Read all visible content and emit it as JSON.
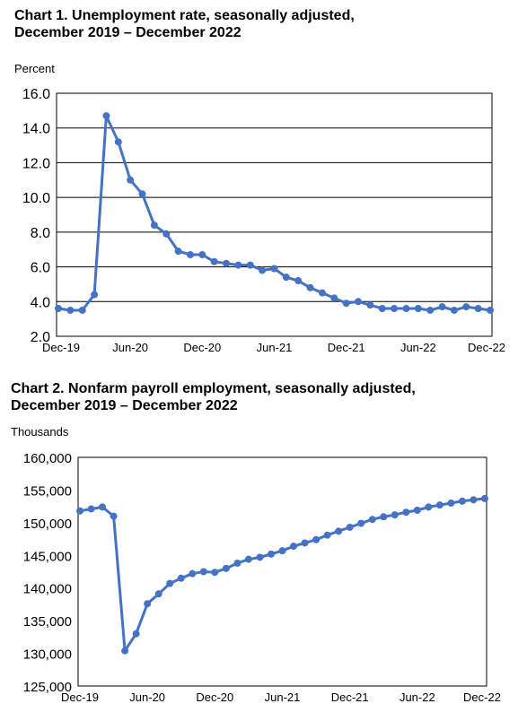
{
  "chart_data": [
    {
      "type": "line",
      "title_line1": "Chart 1. Unemployment rate, seasonally adjusted,",
      "title_line2": "December 2019 – December 2022",
      "ylabel": "Percent",
      "xlabel": "",
      "ylim": [
        2.0,
        16.0
      ],
      "yticks": [
        "2.0",
        "4.0",
        "6.0",
        "8.0",
        "10.0",
        "12.0",
        "14.0",
        "16.0"
      ],
      "ytick_values": [
        2,
        4,
        6,
        8,
        10,
        12,
        14,
        16
      ],
      "xtick_labels": [
        "Dec-19",
        "Jun-20",
        "Dec-20",
        "Jun-21",
        "Dec-21",
        "Jun-22",
        "Dec-22"
      ],
      "xtick_indices": [
        0,
        6,
        12,
        18,
        24,
        30,
        36
      ],
      "grid": true,
      "color": "#4472C4",
      "series": [
        {
          "values": [
            3.6,
            3.5,
            3.5,
            4.4,
            14.7,
            13.2,
            11.0,
            10.2,
            8.4,
            7.9,
            6.9,
            6.7,
            6.7,
            6.3,
            6.2,
            6.1,
            6.1,
            5.8,
            5.9,
            5.4,
            5.2,
            4.8,
            4.5,
            4.2,
            3.9,
            4.0,
            3.8,
            3.6,
            3.6,
            3.6,
            3.6,
            3.5,
            3.7,
            3.5,
            3.7,
            3.6,
            3.5
          ]
        }
      ]
    },
    {
      "type": "line",
      "title_line1": "Chart 2. Nonfarm payroll employment, seasonally adjusted,",
      "title_line2": "December 2019 – December 2022",
      "ylabel": "Thousands",
      "xlabel": "",
      "ylim": [
        125000,
        160000
      ],
      "yticks": [
        "125,000",
        "130,000",
        "135,000",
        "140,000",
        "145,000",
        "150,000",
        "155,000",
        "160,000"
      ],
      "ytick_values": [
        125000,
        130000,
        135000,
        140000,
        145000,
        150000,
        155000,
        160000
      ],
      "xtick_labels": [
        "Dec-19",
        "Jun-20",
        "Dec-20",
        "Jun-21",
        "Dec-21",
        "Jun-22",
        "Dec-22"
      ],
      "xtick_indices": [
        0,
        6,
        12,
        18,
        24,
        30,
        36
      ],
      "grid": false,
      "color": "#4472C4",
      "series": [
        {
          "values": [
            151800,
            152100,
            152400,
            151000,
            130400,
            133000,
            137600,
            139100,
            140700,
            141500,
            142200,
            142500,
            142400,
            143000,
            143800,
            144400,
            144700,
            145200,
            145700,
            146400,
            146900,
            147400,
            148100,
            148700,
            149300,
            149900,
            150500,
            150900,
            151200,
            151600,
            151900,
            152400,
            152700,
            153000,
            153300,
            153500,
            153700
          ]
        }
      ]
    }
  ]
}
